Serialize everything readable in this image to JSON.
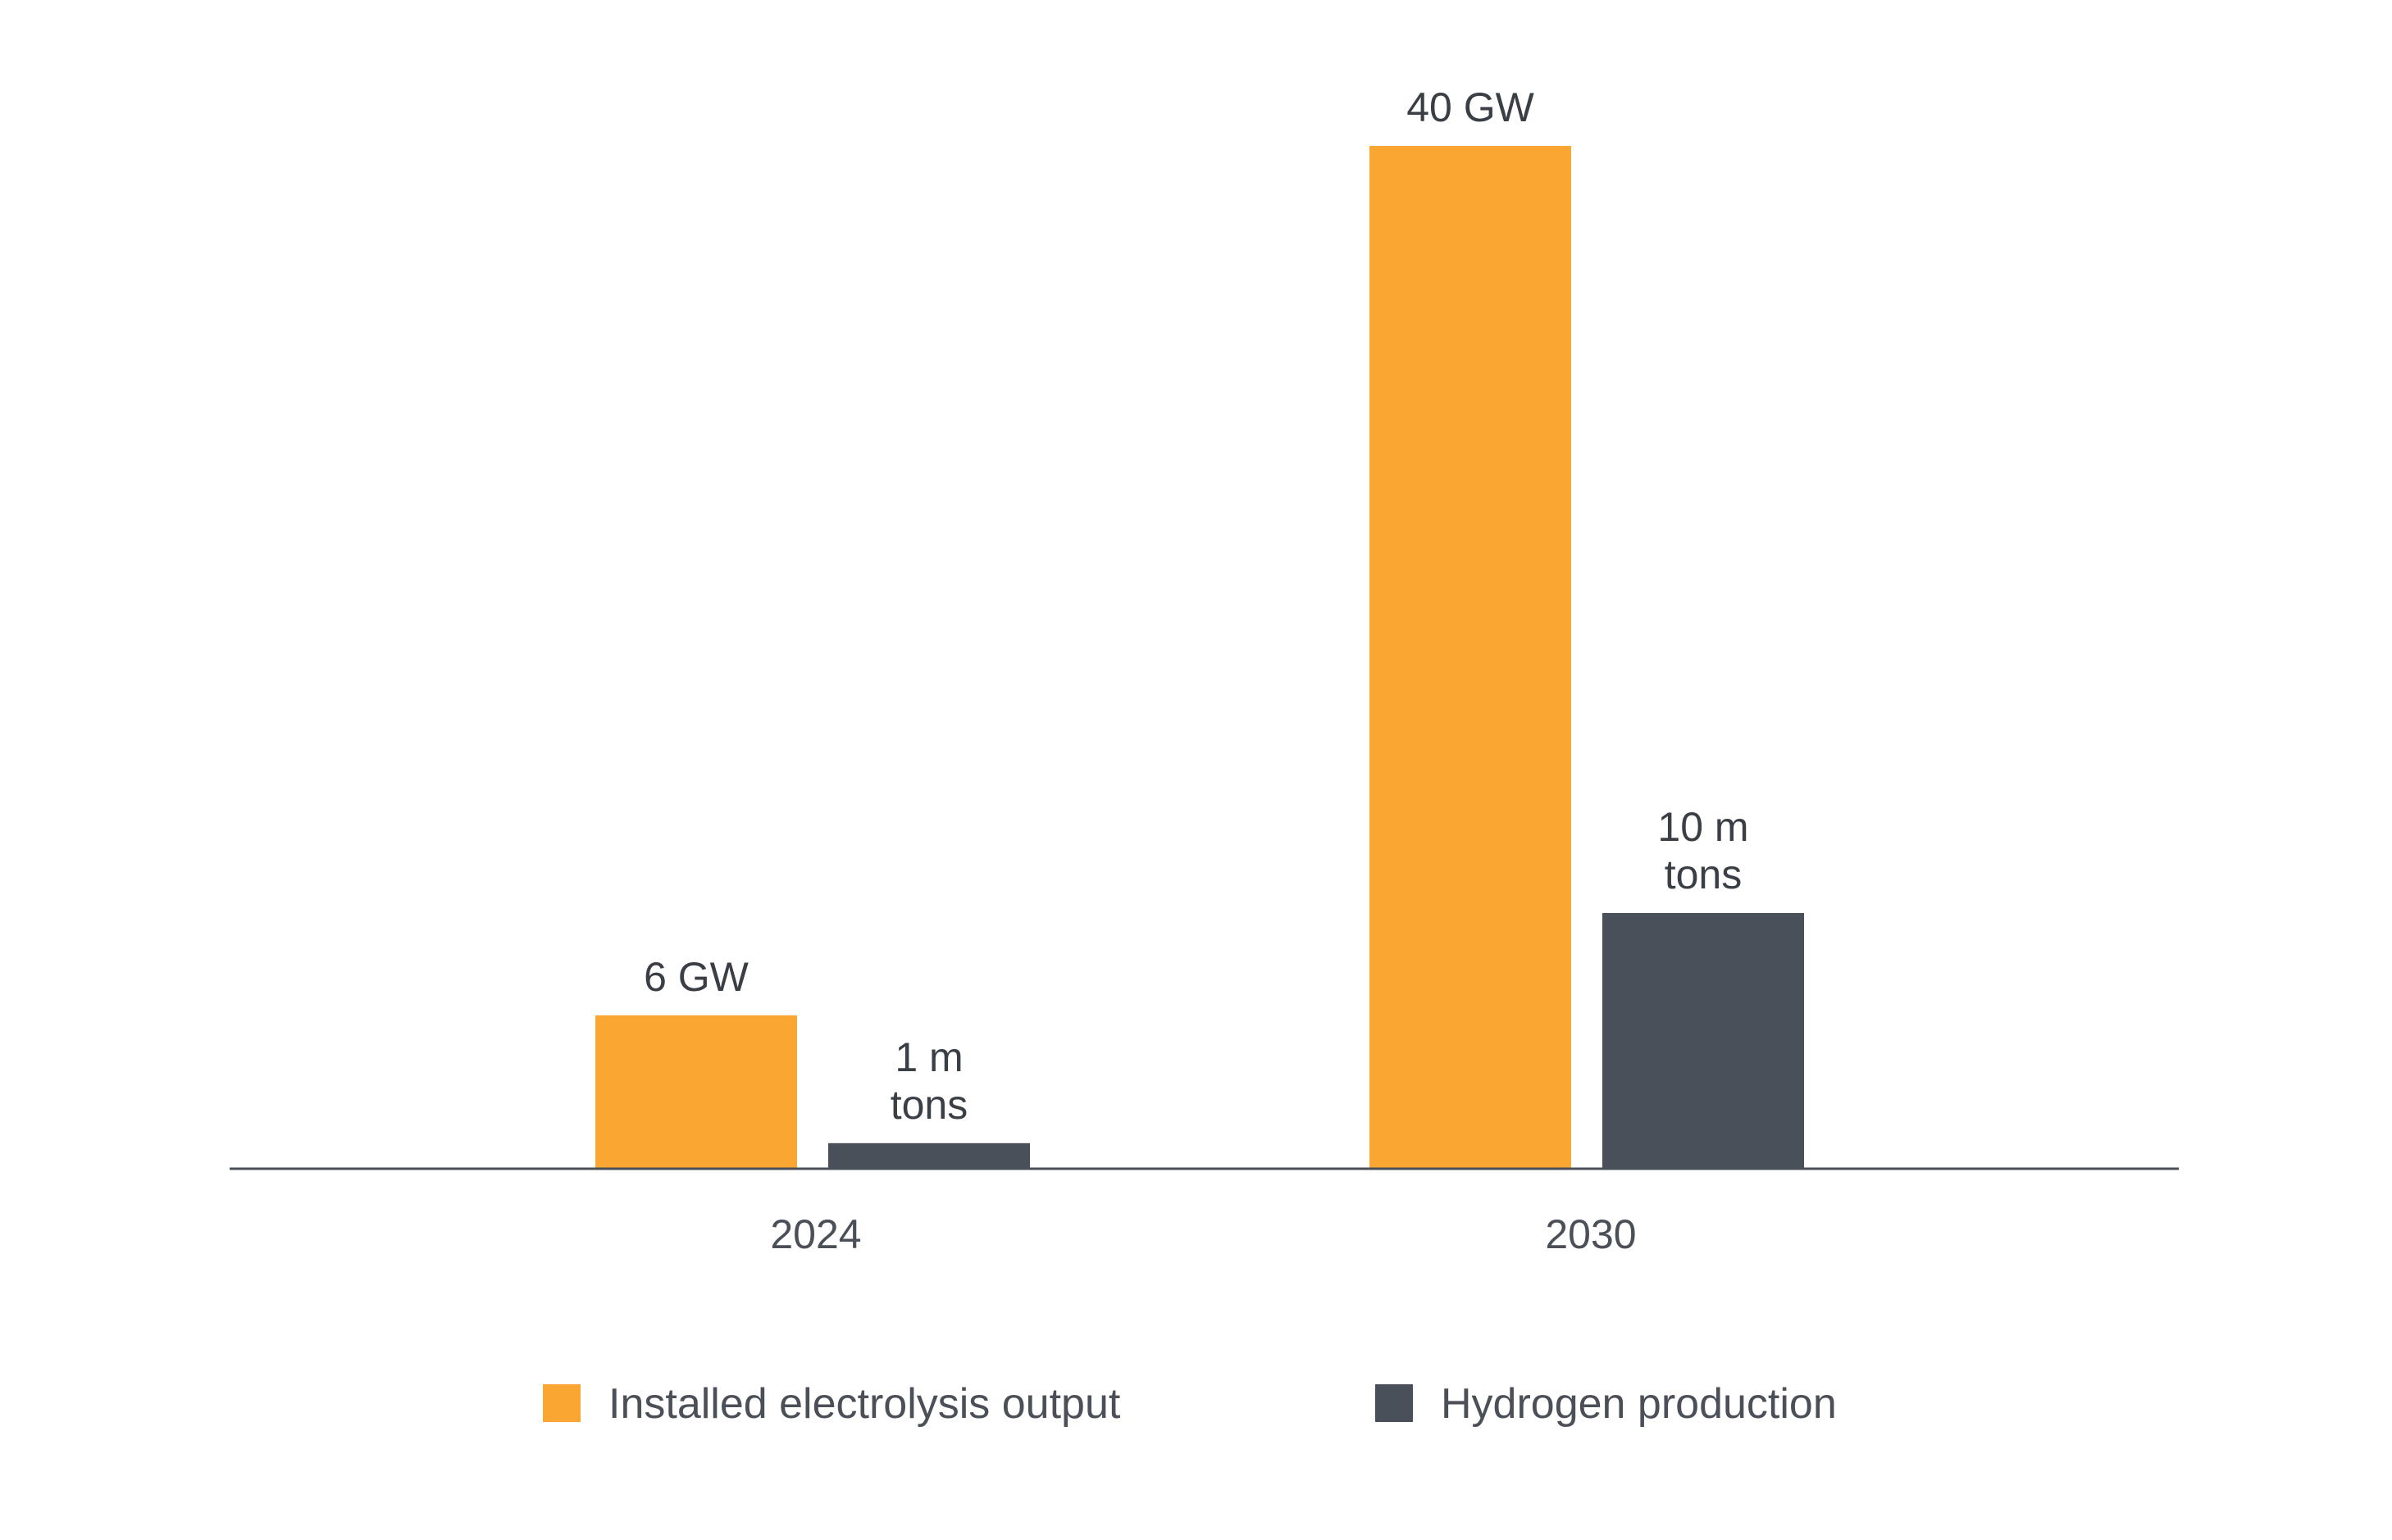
{
  "chart_data": {
    "type": "bar",
    "categories": [
      "2024",
      "2030"
    ],
    "series": [
      {
        "name": "Installed electrolysis output",
        "values": [
          6,
          40
        ],
        "labels": [
          [
            "6 GW"
          ],
          [
            "40 GW"
          ]
        ],
        "color": "#F9A633"
      },
      {
        "name": "Hydrogen production",
        "values": [
          1,
          10
        ],
        "labels": [
          [
            "1 m",
            "tons"
          ],
          [
            "10 m",
            "tons"
          ]
        ],
        "color": "#4A5059"
      }
    ],
    "title": "",
    "xlabel": "",
    "ylabel": "",
    "ylim": [
      0,
      40
    ],
    "grid": false,
    "legend_position": "bottom",
    "axis_line_color": "#4A5059"
  }
}
